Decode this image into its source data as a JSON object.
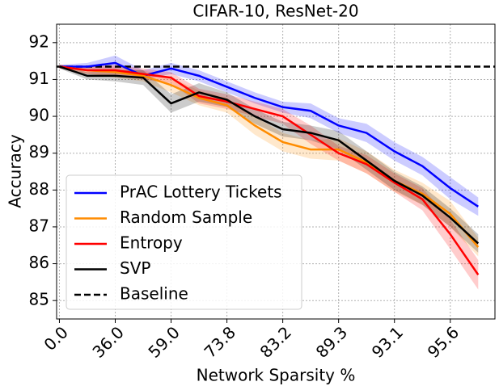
{
  "chart_data": {
    "type": "line",
    "title": "CIFAR-10, ResNet-20",
    "xlabel": "Network Sparsity %",
    "ylabel": "Accuracy",
    "x": [
      0,
      1,
      2,
      3,
      4,
      5,
      6,
      7,
      8,
      9,
      10,
      11,
      12,
      13,
      14,
      15
    ],
    "xlim": [
      -0.1,
      15.6
    ],
    "xticks": [
      {
        "value": 0,
        "label": "0.0"
      },
      {
        "value": 2,
        "label": "36.0"
      },
      {
        "value": 4,
        "label": "59.0"
      },
      {
        "value": 6,
        "label": "73.8"
      },
      {
        "value": 8,
        "label": "83.2"
      },
      {
        "value": 10,
        "label": "89.3"
      },
      {
        "value": 12,
        "label": "93.1"
      },
      {
        "value": 14,
        "label": "95.6"
      }
    ],
    "ylim": [
      84.5,
      92.5
    ],
    "yticks": [
      85,
      86,
      87,
      88,
      89,
      90,
      91,
      92
    ],
    "grid": true,
    "legend": "lower left",
    "series": [
      {
        "name": "PrAC Lottery Tickets",
        "color": "#0000ff",
        "values": [
          91.35,
          91.35,
          91.45,
          91.1,
          91.3,
          91.1,
          90.8,
          90.5,
          90.25,
          90.15,
          89.75,
          89.55,
          89.05,
          88.65,
          88.05,
          87.55
        ],
        "lower": [
          91.3,
          91.25,
          91.25,
          91.0,
          91.15,
          90.95,
          90.65,
          90.35,
          90.1,
          89.95,
          89.55,
          89.3,
          88.8,
          88.4,
          87.75,
          87.3
        ],
        "upper": [
          91.4,
          91.45,
          91.65,
          91.25,
          91.45,
          91.25,
          90.95,
          90.65,
          90.4,
          90.35,
          89.95,
          89.8,
          89.3,
          88.9,
          88.35,
          87.8
        ]
      },
      {
        "name": "Random Sample",
        "color": "#ff8c00",
        "values": [
          91.35,
          91.25,
          91.2,
          91.1,
          90.85,
          90.5,
          90.3,
          89.75,
          89.3,
          89.1,
          89.1,
          88.75,
          88.25,
          87.9,
          87.35,
          86.45
        ],
        "lower": [
          91.3,
          91.15,
          91.05,
          90.95,
          90.65,
          90.3,
          90.1,
          89.5,
          89.05,
          88.85,
          88.8,
          88.45,
          87.95,
          87.6,
          87.0,
          86.2
        ],
        "upper": [
          91.4,
          91.35,
          91.35,
          91.25,
          91.05,
          90.7,
          90.5,
          90.0,
          89.55,
          89.35,
          89.4,
          89.05,
          88.55,
          88.2,
          87.7,
          86.7
        ]
      },
      {
        "name": "Entropy",
        "color": "#ff0000",
        "values": [
          91.35,
          91.25,
          91.25,
          91.15,
          91.05,
          90.55,
          90.4,
          90.2,
          90.0,
          89.5,
          89.0,
          88.7,
          88.2,
          87.75,
          86.8,
          85.7
        ],
        "lower": [
          91.3,
          91.15,
          91.1,
          91.0,
          90.9,
          90.35,
          90.2,
          90.0,
          89.8,
          89.25,
          88.8,
          88.45,
          87.95,
          87.45,
          86.4,
          85.3
        ],
        "upper": [
          91.4,
          91.35,
          91.4,
          91.3,
          91.2,
          90.75,
          90.6,
          90.4,
          90.2,
          89.75,
          89.2,
          88.95,
          88.45,
          88.05,
          87.2,
          86.1
        ]
      },
      {
        "name": "SVP",
        "color": "#000000",
        "values": [
          91.35,
          91.1,
          91.1,
          91.05,
          90.35,
          90.65,
          90.45,
          90.0,
          89.65,
          89.55,
          89.35,
          88.8,
          88.25,
          87.85,
          87.25,
          86.55
        ],
        "lower": [
          91.3,
          91.0,
          90.95,
          90.85,
          90.1,
          90.4,
          90.25,
          89.8,
          89.45,
          89.35,
          89.1,
          88.55,
          88.0,
          87.6,
          87.0,
          86.3
        ],
        "upper": [
          91.4,
          91.2,
          91.25,
          91.25,
          90.6,
          90.9,
          90.65,
          90.2,
          89.85,
          89.75,
          89.6,
          89.05,
          88.5,
          88.1,
          87.5,
          86.8
        ]
      }
    ],
    "baseline": {
      "name": "Baseline",
      "value": 91.35,
      "color": "#000000"
    }
  }
}
